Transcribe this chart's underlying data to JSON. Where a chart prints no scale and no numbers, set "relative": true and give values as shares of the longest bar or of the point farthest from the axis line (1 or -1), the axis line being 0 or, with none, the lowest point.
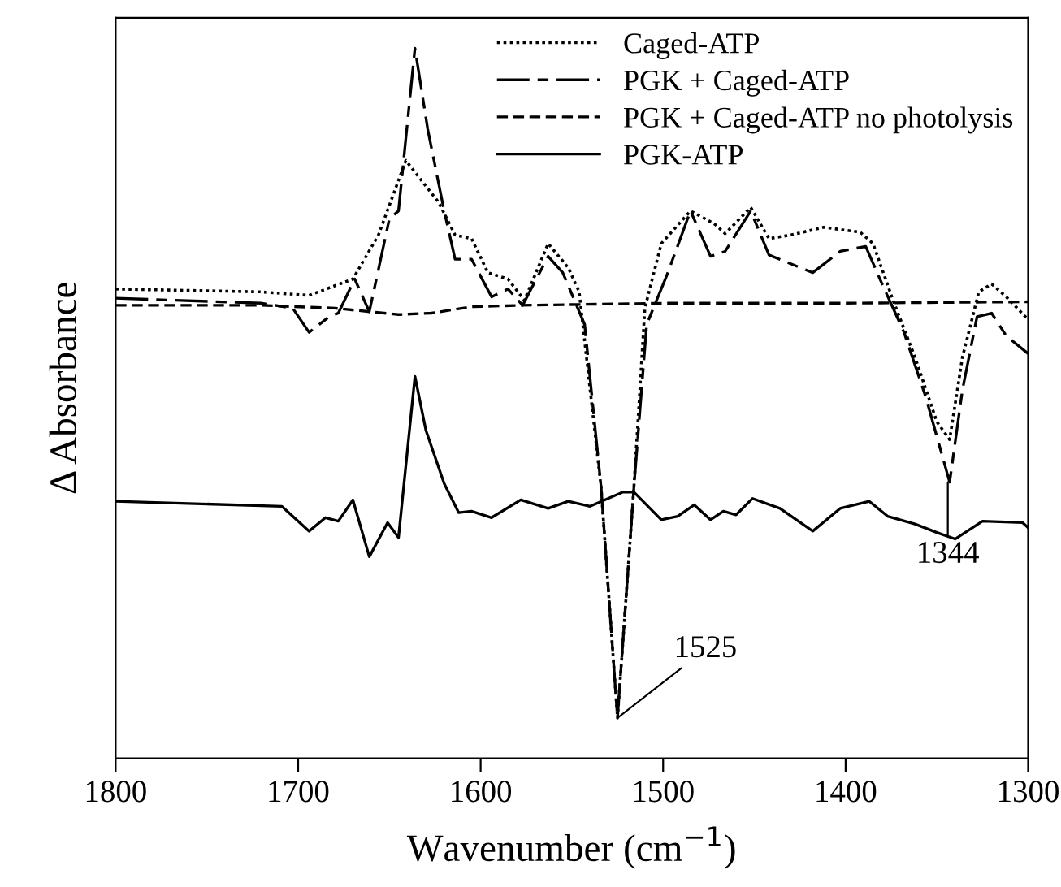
{
  "chart_data": {
    "type": "line",
    "relative": true,
    "xlabel": "Wavenumber (cm$^{−1}$)",
    "ylabel": "Δ Absorbance",
    "xlim": [
      1800,
      1300
    ],
    "xticks": [
      1800,
      1700,
      1600,
      1500,
      1400,
      1300
    ],
    "grid": false,
    "legend": "top right",
    "marker": "none",
    "series": [
      {
        "name": "Caged-ATP",
        "color": "#000000",
        "line_style": "dotted",
        "x": [
          1800,
          1721,
          1694,
          1670,
          1656,
          1641,
          1623,
          1614,
          1605,
          1596,
          1585,
          1576,
          1563,
          1552,
          1546,
          1534,
          1525,
          1516,
          1510,
          1501,
          1485,
          1472,
          1466,
          1452,
          1442,
          1430,
          1412,
          1392,
          1385,
          1374,
          1362,
          1350,
          1343,
          1336,
          1327,
          1320,
          1312,
          1300
        ],
        "values": [
          0.661,
          0.657,
          0.652,
          0.675,
          0.737,
          0.842,
          0.783,
          0.737,
          0.732,
          0.684,
          0.675,
          0.645,
          0.725,
          0.691,
          0.657,
          0.382,
          0.057,
          0.382,
          0.634,
          0.725,
          0.771,
          0.753,
          0.739,
          0.776,
          0.732,
          0.737,
          0.748,
          0.741,
          0.725,
          0.645,
          0.565,
          0.474,
          0.449,
          0.565,
          0.657,
          0.668,
          0.65,
          0.618
        ]
      },
      {
        "name": "PGK + Caged-ATP",
        "color": "#000000",
        "line_style": "dashed",
        "x": [
          1800,
          1720,
          1703,
          1694,
          1683,
          1678,
          1669,
          1661,
          1650,
          1645,
          1636,
          1629,
          1620,
          1614,
          1605,
          1594,
          1585,
          1577,
          1563,
          1555,
          1543,
          1534,
          1525,
          1516,
          1509,
          1498,
          1485,
          1474,
          1466,
          1452,
          1442,
          1418,
          1403,
          1389,
          1380,
          1368,
          1356,
          1343,
          1336,
          1328,
          1320,
          1312,
          1300
        ],
        "values": [
          0.648,
          0.641,
          0.634,
          0.6,
          0.622,
          0.627,
          0.675,
          0.629,
          0.76,
          0.771,
          1.0,
          0.886,
          0.771,
          0.703,
          0.703,
          0.65,
          0.661,
          0.638,
          0.707,
          0.684,
          0.611,
          0.382,
          0.057,
          0.382,
          0.611,
          0.68,
          0.771,
          0.707,
          0.714,
          0.771,
          0.709,
          0.684,
          0.714,
          0.721,
          0.668,
          0.6,
          0.508,
          0.389,
          0.519,
          0.622,
          0.627,
          0.595,
          0.57
        ]
      },
      {
        "name": "PGK + Caged-ATP no photolysis",
        "color": "#000000",
        "line_style": "dashed",
        "x": [
          1800,
          1720,
          1680,
          1645,
          1627,
          1605,
          1578,
          1500,
          1400,
          1300
        ],
        "values": [
          0.638,
          0.638,
          0.634,
          0.625,
          0.627,
          0.636,
          0.638,
          0.641,
          0.641,
          0.643
        ]
      },
      {
        "name": "PGK-ATP",
        "color": "#000000",
        "line_style": "solid",
        "x": [
          1800,
          1709,
          1694,
          1685,
          1678,
          1670,
          1661,
          1651,
          1645,
          1636,
          1630,
          1620,
          1612,
          1605,
          1594,
          1578,
          1563,
          1552,
          1540,
          1522,
          1516,
          1501,
          1492,
          1483,
          1474,
          1467,
          1460,
          1451,
          1436,
          1418,
          1403,
          1387,
          1377,
          1362,
          1350,
          1340,
          1325,
          1303,
          1300
        ],
        "values": [
          0.362,
          0.355,
          0.32,
          0.339,
          0.334,
          0.364,
          0.284,
          0.332,
          0.311,
          0.538,
          0.462,
          0.387,
          0.346,
          0.348,
          0.339,
          0.364,
          0.352,
          0.362,
          0.355,
          0.375,
          0.375,
          0.336,
          0.341,
          0.357,
          0.336,
          0.348,
          0.343,
          0.366,
          0.352,
          0.32,
          0.352,
          0.362,
          0.341,
          0.33,
          0.318,
          0.309,
          0.334,
          0.332,
          0.325
        ]
      }
    ],
    "annotations": [
      {
        "text": "1525",
        "x": 1525,
        "y": 0.057
      },
      {
        "text": "1344",
        "x": 1344,
        "y": 0.389
      }
    ]
  }
}
